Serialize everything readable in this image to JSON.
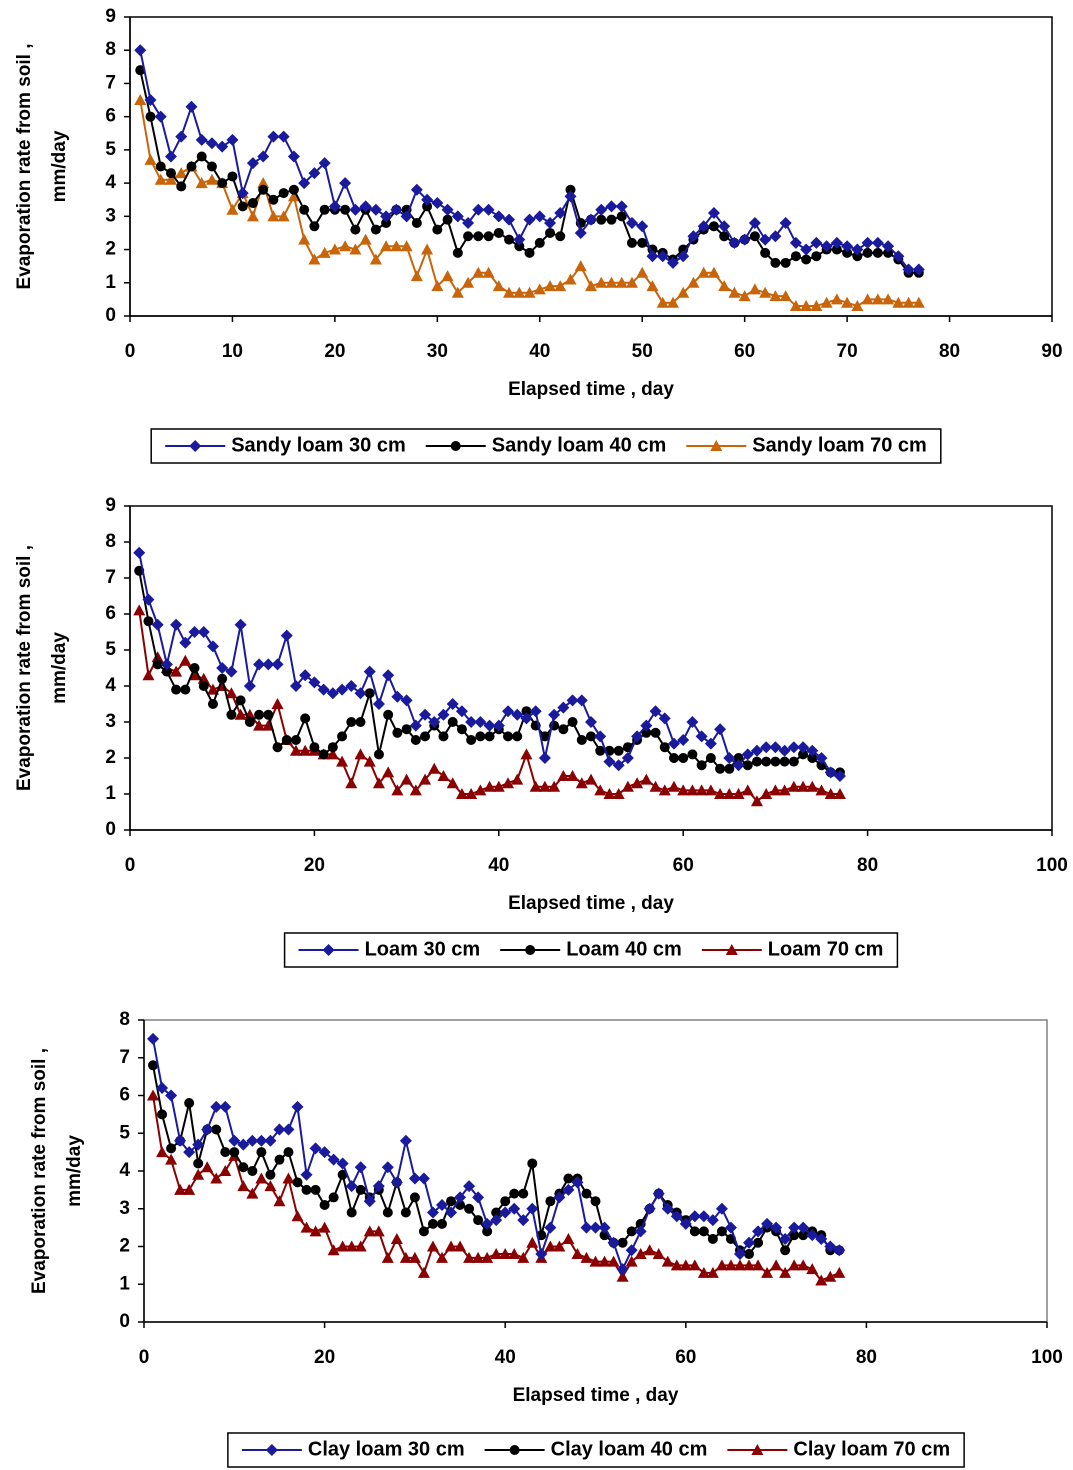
{
  "chart_data": [
    {
      "type": "line",
      "xlabel": "Elapsed time , day",
      "ylabel": [
        "Evaporation rate  from soil ,",
        "mm/day"
      ],
      "xlim": [
        0,
        90
      ],
      "xticks": [
        0,
        10,
        20,
        30,
        40,
        50,
        60,
        70,
        80,
        90
      ],
      "ylim": [
        0,
        9
      ],
      "yticks": [
        0,
        1,
        2,
        3,
        4,
        5,
        6,
        7,
        8,
        9
      ],
      "grid": false,
      "legend": "bottom",
      "frame_color": "#000000",
      "x": [
        1,
        2,
        3,
        4,
        5,
        6,
        7,
        8,
        9,
        10,
        11,
        12,
        13,
        14,
        15,
        16,
        17,
        18,
        19,
        20,
        21,
        22,
        23,
        24,
        25,
        26,
        27,
        28,
        29,
        30,
        31,
        32,
        33,
        34,
        35,
        36,
        37,
        38,
        39,
        40,
        41,
        42,
        43,
        44,
        45,
        46,
        47,
        48,
        49,
        50,
        51,
        52,
        53,
        54,
        55,
        56,
        57,
        58,
        59,
        60,
        61,
        62,
        63,
        64,
        65,
        66,
        67,
        68,
        69,
        70,
        71,
        72,
        73,
        74,
        75,
        76,
        77
      ],
      "series": [
        {
          "name": "Sandy loam 30 cm",
          "color": "#1a1a9c",
          "marker": "diamond",
          "values": [
            8.0,
            6.5,
            6.0,
            4.8,
            5.4,
            6.3,
            5.3,
            5.2,
            5.1,
            5.3,
            3.7,
            4.6,
            4.8,
            5.4,
            5.4,
            4.8,
            4.0,
            4.3,
            4.6,
            3.3,
            4.0,
            3.2,
            3.3,
            3.2,
            3.0,
            3.2,
            3.0,
            3.8,
            3.5,
            3.4,
            3.2,
            3.0,
            2.8,
            3.2,
            3.2,
            3.0,
            2.9,
            2.3,
            2.9,
            3.0,
            2.8,
            3.1,
            3.6,
            2.5,
            2.9,
            3.2,
            3.3,
            3.3,
            2.8,
            2.7,
            1.8,
            1.8,
            1.6,
            1.8,
            2.4,
            2.7,
            3.1,
            2.7,
            2.2,
            2.3,
            2.8,
            2.3,
            2.4,
            2.8,
            2.2,
            2.0,
            2.2,
            2.1,
            2.2,
            2.1,
            2.0,
            2.2,
            2.2,
            2.1,
            1.8,
            1.4,
            1.4
          ]
        },
        {
          "name": "Sandy loam 40 cm",
          "color": "#000000",
          "marker": "circle",
          "values": [
            7.4,
            6.0,
            4.5,
            4.3,
            3.9,
            4.5,
            4.8,
            4.5,
            4.0,
            4.2,
            3.3,
            3.4,
            3.8,
            3.5,
            3.7,
            3.8,
            3.2,
            2.7,
            3.2,
            3.2,
            3.2,
            2.6,
            3.2,
            2.6,
            2.8,
            3.2,
            3.2,
            2.8,
            3.3,
            2.6,
            2.9,
            1.9,
            2.4,
            2.4,
            2.4,
            2.5,
            2.3,
            2.1,
            1.9,
            2.2,
            2.5,
            2.4,
            3.8,
            2.8,
            2.9,
            2.9,
            2.9,
            3.0,
            2.2,
            2.2,
            2.0,
            1.9,
            1.7,
            2.0,
            2.3,
            2.6,
            2.7,
            2.4,
            2.2,
            2.3,
            2.4,
            1.9,
            1.6,
            1.6,
            1.8,
            1.7,
            1.8,
            2.0,
            2.0,
            1.9,
            1.8,
            1.9,
            1.9,
            1.9,
            1.7,
            1.3,
            1.3
          ]
        },
        {
          "name": "Sandy loam 70 cm",
          "color": "#c8640a",
          "marker": "triangle",
          "values": [
            6.5,
            4.7,
            4.1,
            4.1,
            4.3,
            4.5,
            4.0,
            4.1,
            4.0,
            3.2,
            3.7,
            3.0,
            4.0,
            3.0,
            3.0,
            3.6,
            2.3,
            1.7,
            1.9,
            2.0,
            2.1,
            2.0,
            2.3,
            1.7,
            2.1,
            2.1,
            2.1,
            1.2,
            2.0,
            0.9,
            1.2,
            0.7,
            1.0,
            1.3,
            1.3,
            0.9,
            0.7,
            0.7,
            0.7,
            0.8,
            0.9,
            0.9,
            1.1,
            1.5,
            0.9,
            1.0,
            1.0,
            1.0,
            1.0,
            1.3,
            0.9,
            0.4,
            0.4,
            0.7,
            1.0,
            1.3,
            1.3,
            0.9,
            0.7,
            0.6,
            0.8,
            0.7,
            0.6,
            0.6,
            0.3,
            0.3,
            0.3,
            0.4,
            0.5,
            0.4,
            0.3,
            0.5,
            0.5,
            0.5,
            0.4,
            0.4,
            0.4
          ]
        }
      ]
    },
    {
      "type": "line",
      "xlabel": "Elapsed time , day",
      "ylabel": [
        "Evaporation rate  from soil ,",
        "mm/day"
      ],
      "xlim": [
        0,
        100
      ],
      "xticks": [
        0,
        20,
        40,
        60,
        80,
        100
      ],
      "ylim": [
        0,
        9
      ],
      "yticks": [
        0,
        1,
        2,
        3,
        4,
        5,
        6,
        7,
        8,
        9
      ],
      "grid": false,
      "legend": "bottom",
      "frame_color": "#000000",
      "x": [
        1,
        2,
        3,
        4,
        5,
        6,
        7,
        8,
        9,
        10,
        11,
        12,
        13,
        14,
        15,
        16,
        17,
        18,
        19,
        20,
        21,
        22,
        23,
        24,
        25,
        26,
        27,
        28,
        29,
        30,
        31,
        32,
        33,
        34,
        35,
        36,
        37,
        38,
        39,
        40,
        41,
        42,
        43,
        44,
        45,
        46,
        47,
        48,
        49,
        50,
        51,
        52,
        53,
        54,
        55,
        56,
        57,
        58,
        59,
        60,
        61,
        62,
        63,
        64,
        65,
        66,
        67,
        68,
        69,
        70,
        71,
        72,
        73,
        74,
        75,
        76,
        77
      ],
      "series": [
        {
          "name": "Loam 30 cm",
          "color": "#1a1a9c",
          "marker": "diamond",
          "values": [
            7.7,
            6.4,
            5.7,
            4.6,
            5.7,
            5.2,
            5.5,
            5.5,
            5.1,
            4.5,
            4.4,
            5.7,
            4.0,
            4.6,
            4.6,
            4.6,
            5.4,
            4.0,
            4.3,
            4.1,
            3.9,
            3.8,
            3.9,
            4.0,
            3.8,
            4.4,
            3.5,
            4.3,
            3.7,
            3.6,
            2.9,
            3.2,
            3.0,
            3.2,
            3.5,
            3.3,
            3.0,
            3.0,
            2.9,
            2.9,
            3.3,
            3.2,
            3.1,
            3.3,
            2.0,
            3.2,
            3.4,
            3.6,
            3.6,
            3.0,
            2.6,
            1.9,
            1.8,
            2.0,
            2.6,
            2.9,
            3.3,
            3.1,
            2.4,
            2.5,
            3.0,
            2.6,
            2.4,
            2.8,
            2.0,
            1.8,
            2.1,
            2.2,
            2.3,
            2.3,
            2.2,
            2.3,
            2.3,
            2.2,
            2.0,
            1.6,
            1.5
          ]
        },
        {
          "name": "Loam 40 cm",
          "color": "#000000",
          "marker": "circle",
          "values": [
            7.2,
            5.8,
            4.6,
            4.4,
            3.9,
            3.9,
            4.5,
            4.0,
            3.5,
            4.2,
            3.2,
            3.6,
            3.0,
            3.2,
            3.2,
            2.3,
            2.5,
            2.5,
            3.1,
            2.3,
            2.1,
            2.3,
            2.6,
            3.0,
            3.0,
            3.8,
            2.1,
            3.2,
            2.7,
            2.8,
            2.5,
            2.6,
            2.9,
            2.6,
            3.0,
            2.8,
            2.5,
            2.6,
            2.6,
            2.8,
            2.6,
            2.6,
            3.3,
            2.9,
            2.6,
            2.9,
            2.8,
            3.0,
            2.5,
            2.6,
            2.2,
            2.2,
            2.2,
            2.3,
            2.5,
            2.7,
            2.7,
            2.3,
            2.0,
            2.0,
            2.1,
            1.8,
            2.0,
            1.7,
            1.7,
            2.0,
            1.8,
            1.9,
            1.9,
            1.9,
            1.9,
            1.9,
            2.1,
            2.0,
            1.8,
            1.6,
            1.6
          ]
        },
        {
          "name": "Loam 70 cm",
          "color": "#8b0000",
          "marker": "triangle",
          "values": [
            6.1,
            4.3,
            4.8,
            4.5,
            4.4,
            4.7,
            4.3,
            4.2,
            3.9,
            4.0,
            3.8,
            3.2,
            3.2,
            2.9,
            2.9,
            3.5,
            2.5,
            2.2,
            2.2,
            2.2,
            2.1,
            2.1,
            1.9,
            1.3,
            2.1,
            1.9,
            1.3,
            1.6,
            1.1,
            1.4,
            1.1,
            1.4,
            1.7,
            1.5,
            1.3,
            1.0,
            1.0,
            1.1,
            1.2,
            1.2,
            1.3,
            1.4,
            2.1,
            1.2,
            1.2,
            1.2,
            1.5,
            1.5,
            1.3,
            1.4,
            1.1,
            1.0,
            1.0,
            1.2,
            1.3,
            1.4,
            1.2,
            1.1,
            1.2,
            1.1,
            1.1,
            1.1,
            1.1,
            1.0,
            1.0,
            1.0,
            1.1,
            0.8,
            1.0,
            1.1,
            1.1,
            1.2,
            1.2,
            1.2,
            1.1,
            1.0,
            1.0
          ]
        }
      ]
    },
    {
      "type": "line",
      "xlabel": "Elapsed time , day",
      "ylabel": [
        "Evaporation rate  from soil ,",
        "mm/day"
      ],
      "xlim": [
        0,
        100
      ],
      "xticks": [
        0,
        20,
        40,
        60,
        80,
        100
      ],
      "ylim": [
        0,
        8
      ],
      "yticks": [
        0,
        1,
        2,
        3,
        4,
        5,
        6,
        7,
        8
      ],
      "grid": false,
      "legend": "bottom",
      "frame_color": "#808080",
      "x": [
        1,
        2,
        3,
        4,
        5,
        6,
        7,
        8,
        9,
        10,
        11,
        12,
        13,
        14,
        15,
        16,
        17,
        18,
        19,
        20,
        21,
        22,
        23,
        24,
        25,
        26,
        27,
        28,
        29,
        30,
        31,
        32,
        33,
        34,
        35,
        36,
        37,
        38,
        39,
        40,
        41,
        42,
        43,
        44,
        45,
        46,
        47,
        48,
        49,
        50,
        51,
        52,
        53,
        54,
        55,
        56,
        57,
        58,
        59,
        60,
        61,
        62,
        63,
        64,
        65,
        66,
        67,
        68,
        69,
        70,
        71,
        72,
        73,
        74,
        75,
        76,
        77
      ],
      "series": [
        {
          "name": "Clay loam 30 cm",
          "color": "#1a1a9c",
          "marker": "diamond",
          "values": [
            7.5,
            6.2,
            6.0,
            4.8,
            4.5,
            4.7,
            5.1,
            5.7,
            5.7,
            4.8,
            4.7,
            4.8,
            4.8,
            4.8,
            5.1,
            5.1,
            5.7,
            3.9,
            4.6,
            4.5,
            4.3,
            4.2,
            3.6,
            4.1,
            3.2,
            3.6,
            4.1,
            3.7,
            4.8,
            3.8,
            3.8,
            2.9,
            3.1,
            2.9,
            3.3,
            3.6,
            3.3,
            2.6,
            2.7,
            2.9,
            3.0,
            2.7,
            3.0,
            1.8,
            2.5,
            3.3,
            3.5,
            3.7,
            2.5,
            2.5,
            2.5,
            2.1,
            1.4,
            1.9,
            2.4,
            3.0,
            3.4,
            3.0,
            2.8,
            2.6,
            2.8,
            2.8,
            2.7,
            3.0,
            2.5,
            1.8,
            2.1,
            2.4,
            2.6,
            2.5,
            2.2,
            2.5,
            2.5,
            2.3,
            2.2,
            2.0,
            1.9
          ]
        },
        {
          "name": "Clay loam 40 cm",
          "color": "#000000",
          "marker": "circle",
          "values": [
            6.8,
            5.5,
            4.6,
            4.8,
            5.8,
            4.2,
            5.1,
            5.1,
            4.5,
            4.5,
            4.1,
            4.0,
            4.5,
            3.9,
            4.3,
            4.5,
            3.7,
            3.5,
            3.5,
            3.1,
            3.3,
            3.9,
            2.9,
            3.5,
            3.3,
            3.5,
            2.9,
            3.7,
            2.9,
            3.3,
            2.4,
            2.6,
            2.6,
            3.2,
            3.1,
            3.0,
            2.7,
            2.4,
            2.9,
            3.2,
            3.4,
            3.4,
            4.2,
            2.3,
            3.2,
            3.4,
            3.8,
            3.8,
            3.4,
            3.2,
            2.3,
            2.1,
            2.1,
            2.4,
            2.6,
            3.0,
            3.4,
            3.1,
            2.9,
            2.7,
            2.4,
            2.4,
            2.2,
            2.4,
            2.2,
            1.9,
            1.8,
            2.1,
            2.5,
            2.4,
            1.9,
            2.3,
            2.3,
            2.4,
            2.3,
            1.9,
            1.9
          ]
        },
        {
          "name": "Clay loam 70 cm",
          "color": "#8b0000",
          "marker": "triangle",
          "values": [
            6.0,
            4.5,
            4.3,
            3.5,
            3.5,
            3.9,
            4.1,
            3.8,
            4.0,
            4.4,
            3.6,
            3.4,
            3.8,
            3.6,
            3.2,
            3.8,
            2.8,
            2.5,
            2.4,
            2.5,
            1.9,
            2.0,
            2.0,
            2.0,
            2.4,
            2.4,
            1.7,
            2.2,
            1.7,
            1.7,
            1.3,
            2.0,
            1.7,
            2.0,
            2.0,
            1.7,
            1.7,
            1.7,
            1.8,
            1.8,
            1.8,
            1.7,
            2.1,
            1.7,
            2.0,
            2.0,
            2.2,
            1.8,
            1.7,
            1.6,
            1.6,
            1.6,
            1.2,
            1.6,
            1.8,
            1.9,
            1.8,
            1.6,
            1.5,
            1.5,
            1.5,
            1.3,
            1.3,
            1.5,
            1.5,
            1.5,
            1.5,
            1.5,
            1.3,
            1.5,
            1.3,
            1.5,
            1.5,
            1.4,
            1.1,
            1.2,
            1.3
          ]
        }
      ]
    }
  ]
}
